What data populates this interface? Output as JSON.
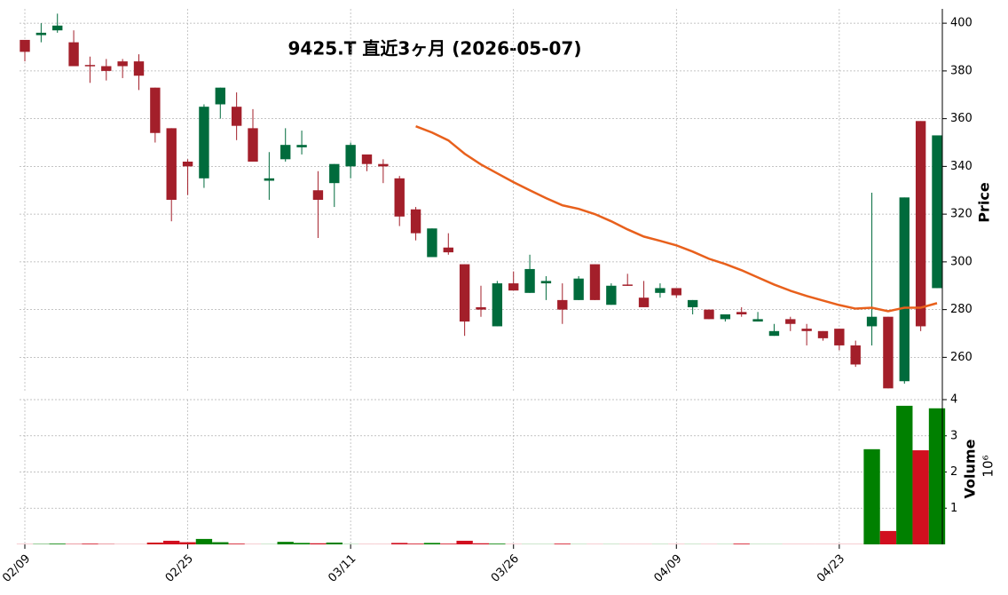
{
  "chart_data": {
    "type": "candlestick",
    "title": "9425.T  直近3ヶ月  (2026-05-07)",
    "categories": [
      "02/09",
      null,
      null,
      null,
      null,
      null,
      null,
      null,
      null,
      null,
      "02/25",
      null,
      null,
      null,
      null,
      null,
      null,
      null,
      null,
      null,
      "03/11",
      null,
      null,
      null,
      null,
      null,
      null,
      null,
      null,
      null,
      "03/26",
      null,
      null,
      null,
      null,
      null,
      null,
      null,
      null,
      null,
      "04/09",
      null,
      null,
      null,
      null,
      null,
      null,
      null,
      null,
      null,
      "04/23",
      null,
      null,
      null,
      null,
      null,
      null
    ],
    "open": [
      393,
      395,
      397,
      392,
      382.5,
      382,
      384,
      384,
      373,
      356,
      342,
      335,
      366,
      365,
      356,
      334,
      343,
      348,
      330,
      333,
      340,
      345,
      341,
      335,
      322,
      302,
      306,
      299,
      281,
      273,
      291,
      287,
      291,
      284,
      284,
      299,
      282,
      290.5,
      285,
      287,
      289,
      281,
      280,
      276,
      279,
      275,
      269,
      276,
      272,
      271,
      272,
      265,
      273,
      277,
      250,
      359,
      289
    ],
    "high": [
      393,
      400,
      404,
      397,
      386,
      385,
      385,
      387,
      373,
      356,
      343,
      366,
      373,
      371,
      364,
      346,
      356,
      355,
      338,
      341,
      350,
      345,
      343,
      336,
      323,
      314,
      312,
      299,
      290,
      292,
      296,
      303,
      294,
      291,
      294,
      299,
      291,
      295,
      292,
      291,
      289,
      284,
      280,
      278,
      281,
      279,
      274,
      277,
      274,
      271,
      272,
      267,
      329,
      277,
      327,
      359,
      353
    ],
    "low": [
      384,
      392,
      396,
      382,
      375,
      376,
      377,
      372,
      350,
      317,
      328,
      331,
      360,
      351,
      342,
      326,
      342,
      345,
      310,
      323,
      335,
      338,
      333,
      315,
      309,
      302,
      303,
      269,
      277,
      273,
      288,
      287,
      284,
      274,
      284,
      284,
      282,
      290,
      281,
      285,
      285,
      278,
      276,
      275,
      277,
      275,
      269,
      271,
      265,
      267,
      263,
      256,
      265,
      247,
      249,
      271,
      289
    ],
    "close": [
      388,
      396,
      399,
      382,
      382,
      380,
      382,
      378,
      354,
      326,
      340,
      365,
      373,
      357,
      342,
      335,
      349,
      349,
      326,
      341,
      349,
      341,
      340,
      319,
      312,
      314,
      304,
      275,
      280,
      291,
      288,
      297,
      292,
      280,
      293,
      284,
      290,
      290,
      281,
      289,
      286,
      284,
      276,
      278,
      278,
      276,
      271,
      274,
      271,
      268,
      265,
      257,
      277,
      247,
      327,
      273,
      353
    ],
    "color_up": "#006b3c",
    "color_down": "#a31f2a",
    "ylim": [
      246,
      406
    ],
    "yticks": [
      260,
      280,
      300,
      320,
      340,
      360,
      380,
      400
    ],
    "y_label": "Price",
    "grid": true,
    "moving_average": {
      "color": "#e8601c",
      "values": [
        null,
        null,
        null,
        null,
        null,
        null,
        null,
        null,
        null,
        null,
        null,
        null,
        null,
        null,
        null,
        null,
        null,
        null,
        null,
        null,
        null,
        null,
        null,
        null,
        356.8,
        354.2,
        350.9,
        345.3,
        340.8,
        337.1,
        333.4,
        330.0,
        326.7,
        323.7,
        322.2,
        320.0,
        317.0,
        313.6,
        310.6,
        308.8,
        306.9,
        304.3,
        301.3,
        299.1,
        296.5,
        293.5,
        290.5,
        287.9,
        285.7,
        283.8,
        281.9,
        280.4,
        280.8,
        279.3,
        280.8,
        280.8,
        282.7
      ]
    },
    "volume": {
      "label": "Volume",
      "multiplier_label": "10⁶",
      "color_up": "#008000",
      "color_down": "#d10f1f",
      "ylim": [
        0,
        4
      ],
      "yticks": [
        1,
        2,
        3,
        4
      ],
      "values": [
        0.005,
        0.01,
        0.02,
        0.01,
        0.02,
        0.01,
        0.005,
        0.005,
        0.05,
        0.1,
        0.06,
        0.15,
        0.06,
        0.02,
        0.005,
        0.005,
        0.07,
        0.04,
        0.03,
        0.05,
        0.005,
        0.005,
        0.005,
        0.04,
        0.02,
        0.04,
        0.02,
        0.1,
        0.03,
        0.02,
        0.005,
        0.005,
        0.005,
        0.02,
        0.005,
        0.005,
        0.005,
        0.005,
        0.005,
        0.005,
        0.005,
        0.005,
        0.005,
        0.005,
        0.02,
        0.005,
        0.005,
        0.005,
        0.005,
        0.005,
        0.005,
        0.005,
        2.63,
        0.37,
        3.83,
        2.6,
        3.76
      ]
    }
  }
}
